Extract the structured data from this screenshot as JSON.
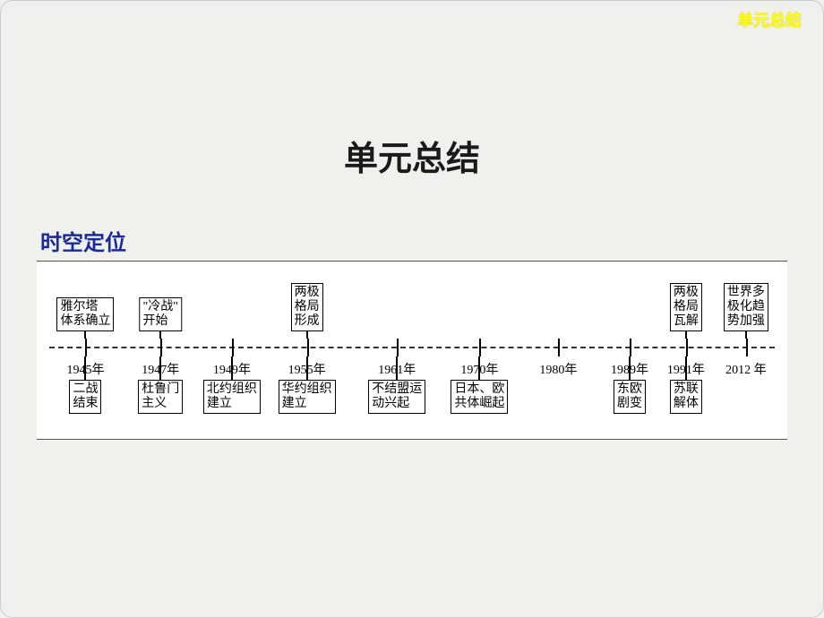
{
  "corner_label": "单元总结",
  "main_title": "单元总结",
  "section_title": "时空定位",
  "timeline": {
    "type": "timeline",
    "background_color": "#ffffff",
    "axis_style": "dashed",
    "axis_color": "#333333",
    "box_border_color": "#000000",
    "font_size": 14,
    "points": [
      {
        "x_pct": 6.5,
        "year": "1945年",
        "top": "雅尔塔\n体系确立",
        "bottom": "二战\n结束"
      },
      {
        "x_pct": 16.5,
        "year": "1947年",
        "top": "\"冷战\"\n开始",
        "bottom": "杜鲁门\n主义"
      },
      {
        "x_pct": 26.0,
        "year": "1949年",
        "top": null,
        "bottom": "北约组织\n建立"
      },
      {
        "x_pct": 36.0,
        "year": "1955年",
        "top": "两极\n格局\n形成",
        "bottom": "华约组织\n建立"
      },
      {
        "x_pct": 48.0,
        "year": "1961年",
        "top": null,
        "bottom": "不结盟运\n动兴起"
      },
      {
        "x_pct": 59.0,
        "year": "1970年",
        "top": null,
        "bottom": "日本、欧\n共体崛起"
      },
      {
        "x_pct": 69.5,
        "year": "1980年",
        "top": null,
        "bottom": null
      },
      {
        "x_pct": 79.0,
        "year": "1989年",
        "top": null,
        "bottom": "东欧\n剧变"
      },
      {
        "x_pct": 86.5,
        "year": "1991年",
        "top": "两极\n格局\n瓦解",
        "bottom": "苏联\n解体"
      },
      {
        "x_pct": 94.5,
        "year": "2012 年",
        "top": "世界多\n极化趋\n势加强",
        "bottom": null
      }
    ]
  }
}
